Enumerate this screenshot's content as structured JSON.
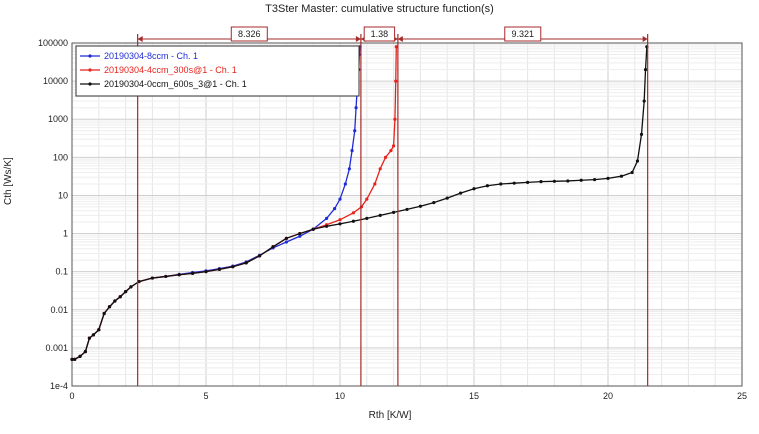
{
  "chart_data": {
    "type": "line",
    "title": "T3Ster Master: cumulative structure function(s)",
    "xlabel": "Rth  [K/W]",
    "ylabel": "Cth  [Ws/K]",
    "xlim": [
      0,
      25
    ],
    "ylim": [
      0.0001,
      100000
    ],
    "yscale": "log",
    "grid": true,
    "legend_position": "top-left",
    "x_ticks": [
      "0",
      "5",
      "10",
      "15",
      "20",
      "25"
    ],
    "y_ticks": [
      "1e-4",
      "0.001",
      "0.01",
      "0.1",
      "1",
      "10",
      "100",
      "1000",
      "10000",
      "100000"
    ],
    "series": [
      {
        "name": "20190304-8ccm - Ch. 1",
        "color": "#1f2bd6",
        "x": [
          0,
          0.1,
          0.3,
          0.5,
          0.65,
          0.8,
          1.0,
          1.2,
          1.4,
          1.6,
          1.8,
          2.0,
          2.2,
          2.5,
          3.0,
          3.5,
          4.0,
          4.5,
          5.0,
          5.5,
          6.0,
          6.5,
          7.0,
          7.5,
          8.0,
          8.5,
          9.0,
          9.5,
          9.8,
          10.0,
          10.2,
          10.35,
          10.45,
          10.55,
          10.6,
          10.65,
          10.7,
          10.72,
          10.75
        ],
        "y": [
          0.0005,
          0.0005,
          0.0006,
          0.0008,
          0.0018,
          0.0022,
          0.003,
          0.008,
          0.012,
          0.017,
          0.022,
          0.03,
          0.04,
          0.055,
          0.068,
          0.075,
          0.085,
          0.095,
          0.105,
          0.12,
          0.14,
          0.18,
          0.27,
          0.42,
          0.6,
          0.85,
          1.3,
          2.5,
          4.5,
          8,
          20,
          50,
          150,
          500,
          2000,
          8000,
          20000,
          50000,
          80000
        ]
      },
      {
        "name": "20190304-4ccm_300s@1 - Ch. 1",
        "color": "#e8231c",
        "x": [
          0,
          0.1,
          0.3,
          0.5,
          0.65,
          0.8,
          1.0,
          1.2,
          1.4,
          1.6,
          1.8,
          2.0,
          2.2,
          2.5,
          3.0,
          3.5,
          4.0,
          4.5,
          5.0,
          5.5,
          6.0,
          6.5,
          7.0,
          7.5,
          8.0,
          8.5,
          9.0,
          9.5,
          10.0,
          10.5,
          10.8,
          11.0,
          11.3,
          11.5,
          11.7,
          11.9,
          12.0,
          12.05,
          12.08,
          12.1
        ],
        "y": [
          0.0005,
          0.0005,
          0.0006,
          0.0008,
          0.0018,
          0.0022,
          0.003,
          0.008,
          0.012,
          0.017,
          0.022,
          0.03,
          0.04,
          0.055,
          0.068,
          0.075,
          0.083,
          0.09,
          0.1,
          0.115,
          0.135,
          0.17,
          0.26,
          0.45,
          0.75,
          1.0,
          1.3,
          1.7,
          2.3,
          3.5,
          5,
          8,
          20,
          50,
          100,
          150,
          200,
          1000,
          10000,
          80000
        ]
      },
      {
        "name": "20190304-0ccm_600s_3@1 - Ch. 1",
        "color": "#111111",
        "x": [
          0,
          0.1,
          0.3,
          0.5,
          0.65,
          0.8,
          1.0,
          1.2,
          1.4,
          1.6,
          1.8,
          2.0,
          2.2,
          2.5,
          3.0,
          3.5,
          4.0,
          4.5,
          5.0,
          5.5,
          6.0,
          6.5,
          7.0,
          7.5,
          8.0,
          8.5,
          9.0,
          9.5,
          10.0,
          10.5,
          11.0,
          11.5,
          12.0,
          12.5,
          13.0,
          13.5,
          14.0,
          14.5,
          15.0,
          15.5,
          16.0,
          16.5,
          17.0,
          17.5,
          18.0,
          18.5,
          19.0,
          19.5,
          20.0,
          20.5,
          20.9,
          21.1,
          21.25,
          21.35,
          21.4,
          21.45
        ],
        "y": [
          0.0005,
          0.0005,
          0.0006,
          0.0008,
          0.0018,
          0.0022,
          0.003,
          0.008,
          0.012,
          0.017,
          0.022,
          0.03,
          0.04,
          0.055,
          0.068,
          0.075,
          0.083,
          0.09,
          0.1,
          0.115,
          0.135,
          0.17,
          0.26,
          0.45,
          0.75,
          1.0,
          1.3,
          1.55,
          1.8,
          2.1,
          2.5,
          3.0,
          3.6,
          4.3,
          5.2,
          6.5,
          8.5,
          11.5,
          15,
          18,
          20,
          21,
          22,
          23,
          23.5,
          24,
          25,
          26,
          28,
          32,
          40,
          80,
          400,
          3000,
          20000,
          80000
        ]
      }
    ],
    "markers": {
      "vertical_lines_x": [
        2.45,
        10.78,
        12.16,
        21.48
      ],
      "dimensions": [
        {
          "from": 2.45,
          "to": 10.78,
          "label": "8.326"
        },
        {
          "from": 10.78,
          "to": 12.16,
          "label": "1.38"
        },
        {
          "from": 12.16,
          "to": 21.48,
          "label": "9.321"
        }
      ]
    }
  }
}
